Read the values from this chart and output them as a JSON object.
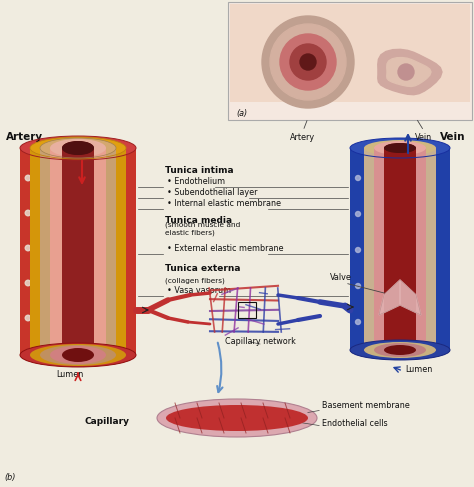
{
  "background_color": "#f0ece0",
  "panel_a_label": "(a)",
  "panel_b_label": "(b)",
  "artery_label": "Artery",
  "vein_label": "Vein",
  "capillary_label": "Capillary",
  "tunica_intima_label": "Tunica intima",
  "tunica_intima_bullets": [
    "Endothelium",
    "Subendothelial layer",
    "Internal elastic membrane"
  ],
  "tunica_media_label": "Tunica media",
  "tunica_media_sub": "(smooth muscle and\nelastic fibers)",
  "tunica_media_bullets": [
    "External elastic membrane"
  ],
  "tunica_externa_label": "Tunica externa",
  "tunica_externa_sub": "(collagen fibers)",
  "tunica_externa_bullets": [
    "Vasa vasorum"
  ],
  "valve_label": "Valve",
  "capillary_network_label": "Capillary network",
  "lumen_label": "Lumen",
  "basement_membrane_label": "Basement membrane",
  "endothelial_cells_label": "Endothelial cells",
  "red_outer": "#c8352a",
  "red_mid": "#d4706a",
  "red_inner": "#e8a090",
  "red_lumen": "#a02020",
  "gold_color": "#d4960a",
  "tan_color": "#c8a070",
  "blue_outer": "#2040a8",
  "blue_mid": "#4060c0",
  "white_dot": "#e8e0d0",
  "line_color": "#444444",
  "text_color": "#111111",
  "fs_title": 7.5,
  "fs_label": 6.5,
  "fs_small": 5.8
}
